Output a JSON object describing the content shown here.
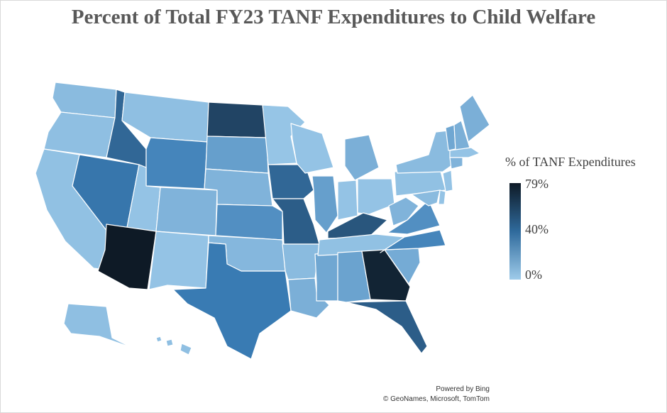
{
  "title": "Percent of Total FY23 TANF Expenditures to Child Welfare",
  "legend": {
    "title": "% of TANF Expenditures",
    "max_label": "79%",
    "mid_label": "40%",
    "min_label": "0%"
  },
  "credits": {
    "line1": "Powered by Bing",
    "line2": "© GeoNames, Microsoft, TomTom"
  },
  "colors": {
    "low": "#9ecbea",
    "mid": "#3a7cb5",
    "high": "#0e1a26"
  },
  "map_data": {
    "type": "choropleth",
    "metric_max": 79,
    "states": [
      {
        "code": "WA",
        "value": 8
      },
      {
        "code": "OR",
        "value": 6
      },
      {
        "code": "CA",
        "value": 5
      },
      {
        "code": "NV",
        "value": 42
      },
      {
        "code": "ID",
        "value": 48
      },
      {
        "code": "MT",
        "value": 6
      },
      {
        "code": "WY",
        "value": 35
      },
      {
        "code": "UT",
        "value": 4
      },
      {
        "code": "AZ",
        "value": 79
      },
      {
        "code": "CO",
        "value": 12
      },
      {
        "code": "NM",
        "value": 4
      },
      {
        "code": "ND",
        "value": 62
      },
      {
        "code": "SD",
        "value": 22
      },
      {
        "code": "NE",
        "value": 12
      },
      {
        "code": "KS",
        "value": 30
      },
      {
        "code": "OK",
        "value": 10
      },
      {
        "code": "TX",
        "value": 40
      },
      {
        "code": "MN",
        "value": 3
      },
      {
        "code": "IA",
        "value": 48
      },
      {
        "code": "MO",
        "value": 52
      },
      {
        "code": "AR",
        "value": 8
      },
      {
        "code": "LA",
        "value": 14
      },
      {
        "code": "WI",
        "value": 4
      },
      {
        "code": "IL",
        "value": 22
      },
      {
        "code": "MS",
        "value": 18
      },
      {
        "code": "MI",
        "value": 14
      },
      {
        "code": "IN",
        "value": 4
      },
      {
        "code": "OH",
        "value": 4
      },
      {
        "code": "KY",
        "value": 55
      },
      {
        "code": "TN",
        "value": 5
      },
      {
        "code": "AL",
        "value": 20
      },
      {
        "code": "GA",
        "value": 75
      },
      {
        "code": "FL",
        "value": 52
      },
      {
        "code": "SC",
        "value": 16
      },
      {
        "code": "NC",
        "value": 35
      },
      {
        "code": "VA",
        "value": 30
      },
      {
        "code": "WV",
        "value": 12
      },
      {
        "code": "PA",
        "value": 5
      },
      {
        "code": "NY",
        "value": 8
      },
      {
        "code": "ME",
        "value": 14
      },
      {
        "code": "VT",
        "value": 18
      },
      {
        "code": "NH",
        "value": 14
      },
      {
        "code": "MA",
        "value": 4
      },
      {
        "code": "CT",
        "value": 12
      },
      {
        "code": "NJ",
        "value": 4
      },
      {
        "code": "MD",
        "value": 8
      },
      {
        "code": "DE",
        "value": 4
      },
      {
        "code": "AK",
        "value": 6
      },
      {
        "code": "HI",
        "value": 6
      }
    ]
  }
}
